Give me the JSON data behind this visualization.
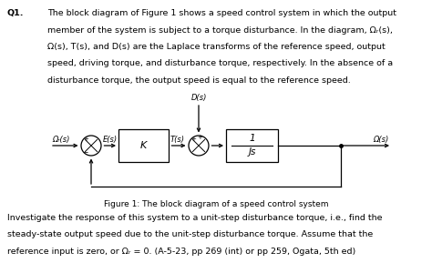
{
  "bg_color": "#ffffff",
  "text_color": "#000000",
  "q_label": "Q1.",
  "lines_top": [
    "The block diagram of Figure 1 shows a speed control system in which the output",
    "member of the system is subject to a torque disturbance. In the diagram, Ωᵣ(s),",
    "Ω(s), T(s), and D(s) are the Laplace transforms of the reference speed, output",
    "speed, driving torque, and disturbance torque, respectively. In the absence of a",
    "disturbance torque, the output speed is equal to the reference speed."
  ],
  "lines_bottom": [
    "Investigate the response of this system to a unit-step disturbance torque, i.e., find the",
    "steady-state output speed due to the unit-step disturbance torque. Assume that the",
    "reference input is zero, or Ωᵣ = 0. (A-5-23, pp 269 (int) or pp 259, Ogata, 5th ed)"
  ],
  "figure_caption": "Figure 1: The block diagram of a speed control system",
  "font_size_text": 6.8,
  "font_size_diag": 6.0,
  "diagram": {
    "omega_r": "Ωᵣ(s)",
    "E_label": "E(s)",
    "T_label": "T(s)",
    "D_label": "D(s)",
    "omega_out": "Ω(s)",
    "K_label": "K",
    "num_label": "1",
    "den_label": "Js"
  }
}
